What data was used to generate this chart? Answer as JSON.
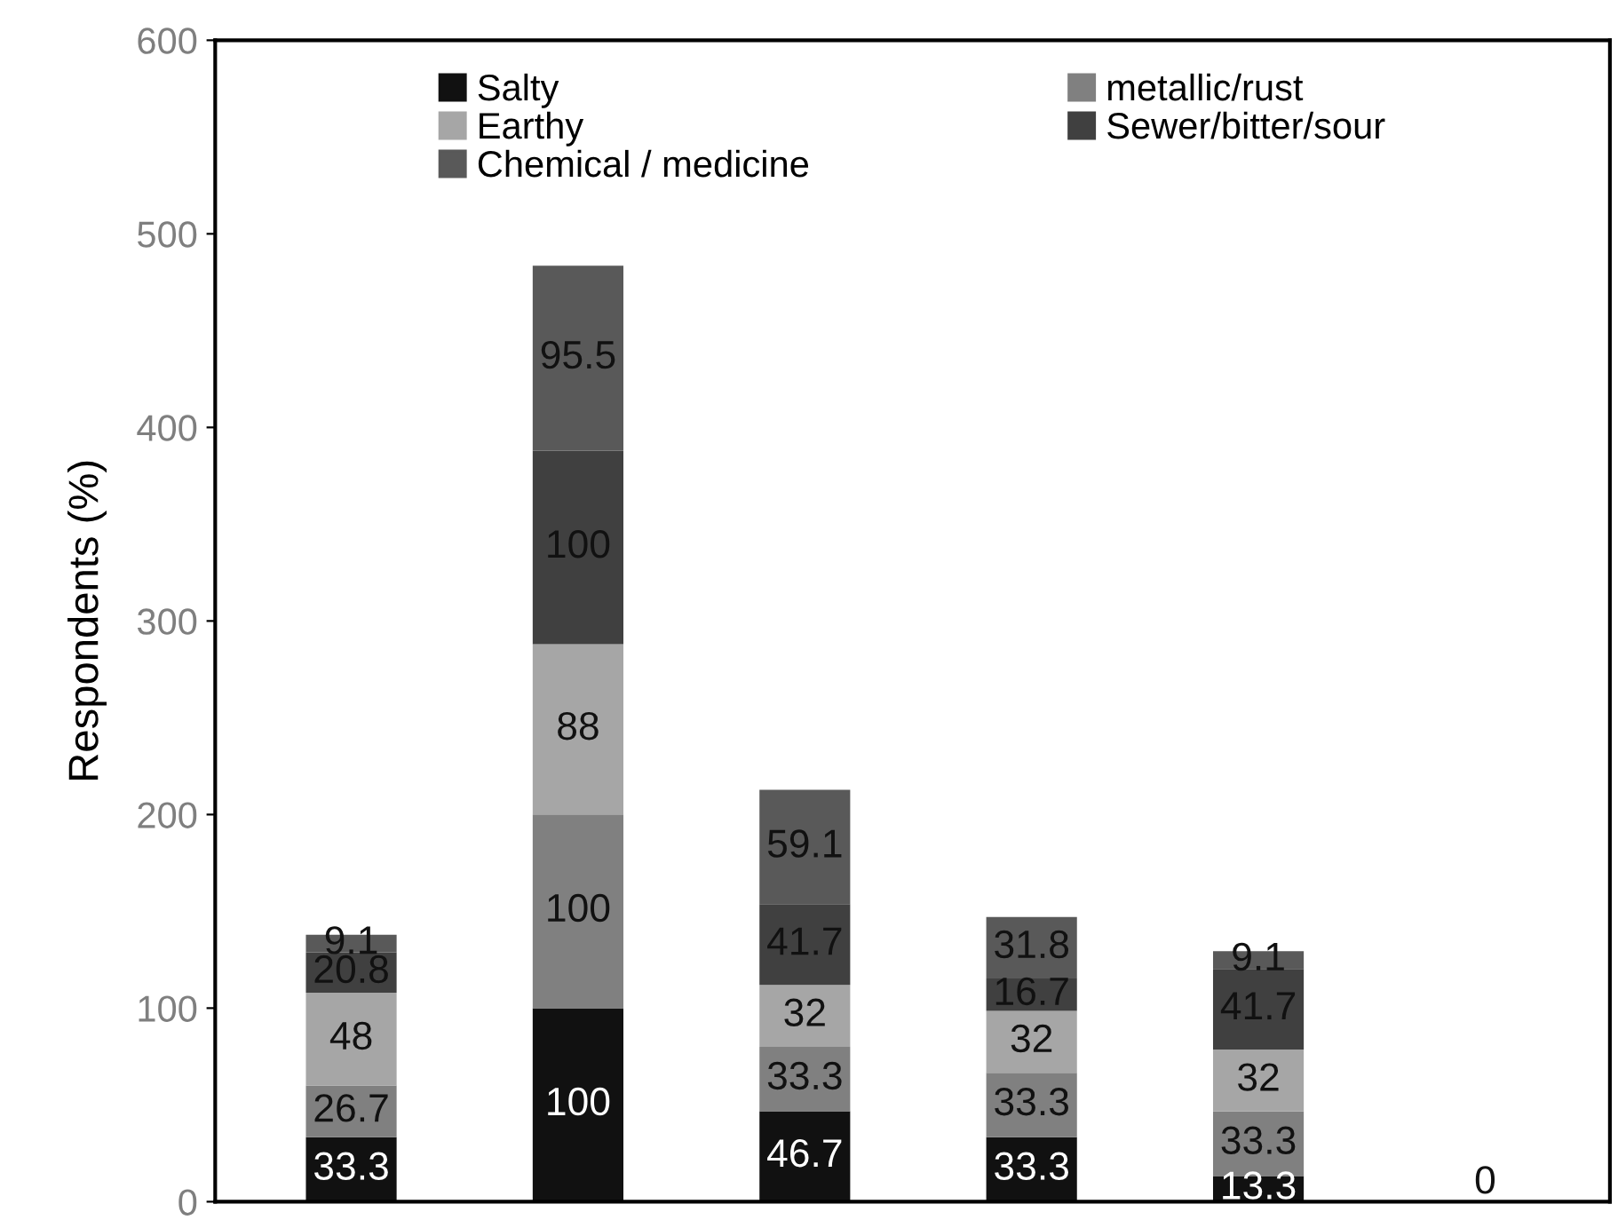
{
  "chart_data": {
    "type": "bar",
    "stacked": true,
    "ylabel": "Respondents (%)",
    "categories": [
      null,
      null,
      null,
      null,
      null,
      null
    ],
    "series": [
      {
        "name": "Salty",
        "color": "#111111",
        "values": [
          33.3,
          100,
          46.7,
          33.3,
          13.3,
          0
        ],
        "value_labels": [
          "33.3",
          "100",
          "46.7",
          "33.3",
          "13.3",
          "0"
        ]
      },
      {
        "name": "metallic/rust",
        "color": "#808080",
        "values": [
          26.7,
          100,
          33.3,
          33.3,
          33.3,
          0
        ],
        "value_labels": [
          "26.7",
          "100",
          "33.3",
          "33.3",
          "33.3",
          null
        ]
      },
      {
        "name": "Earthy",
        "color": "#a6a6a6",
        "values": [
          48,
          88,
          32,
          32,
          32,
          0
        ],
        "value_labels": [
          "48",
          "88",
          "32",
          "32",
          "32",
          null
        ]
      },
      {
        "name": "Sewer/bitter/sour",
        "color": "#404040",
        "values": [
          20.8,
          100,
          41.7,
          16.7,
          41.7,
          0
        ],
        "value_labels": [
          "20.8",
          "100",
          "41.7",
          "16.7",
          "41.7",
          null
        ]
      },
      {
        "name": "Chemical / medicine",
        "color": "#595959",
        "values": [
          9.1,
          95.5,
          59.1,
          31.8,
          9.1,
          0
        ],
        "value_labels": [
          "9.1",
          "95.5",
          "59.1",
          "31.8",
          "9.1",
          null
        ]
      }
    ],
    "ylim": [
      0,
      600
    ],
    "yticks": [
      0,
      100,
      200,
      300,
      400,
      500,
      600
    ],
    "legend": "top",
    "grid": false,
    "tick_labels": "y"
  }
}
